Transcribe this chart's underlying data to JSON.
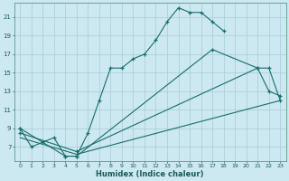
{
  "xlabel": "Humidex (Indice chaleur)",
  "bg_color": "#cce8f0",
  "grid_color": "#a8ccd8",
  "line_color": "#1a6e6a",
  "xlim": [
    -0.5,
    23.5
  ],
  "ylim": [
    5.5,
    22.5
  ],
  "xticks": [
    0,
    1,
    2,
    3,
    4,
    5,
    6,
    7,
    8,
    9,
    10,
    11,
    12,
    13,
    14,
    15,
    16,
    17,
    18,
    19,
    20,
    21,
    22,
    23
  ],
  "yticks": [
    7,
    9,
    11,
    13,
    15,
    17,
    19,
    21
  ],
  "curve1_x": [
    0,
    1,
    2,
    3,
    4,
    5,
    6,
    7,
    8,
    9,
    10,
    11,
    12,
    13,
    14,
    15,
    16,
    17,
    18
  ],
  "curve1_y": [
    9,
    7,
    7.5,
    8,
    6,
    6,
    8.5,
    12,
    15.5,
    15.5,
    16.5,
    17,
    18.5,
    20.5,
    22,
    21.5,
    21.5,
    20.5,
    19.5
  ],
  "curve2_x": [
    0,
    4,
    5,
    17,
    21,
    22,
    23
  ],
  "curve2_y": [
    9,
    6,
    6,
    17.5,
    15.5,
    13,
    12.5
  ],
  "curve3_x": [
    0,
    5,
    21,
    22,
    23
  ],
  "curve3_y": [
    8.5,
    6.5,
    15.5,
    15.5,
    12
  ],
  "curve4_x": [
    0,
    5,
    23
  ],
  "curve4_y": [
    8,
    6.2,
    12
  ]
}
